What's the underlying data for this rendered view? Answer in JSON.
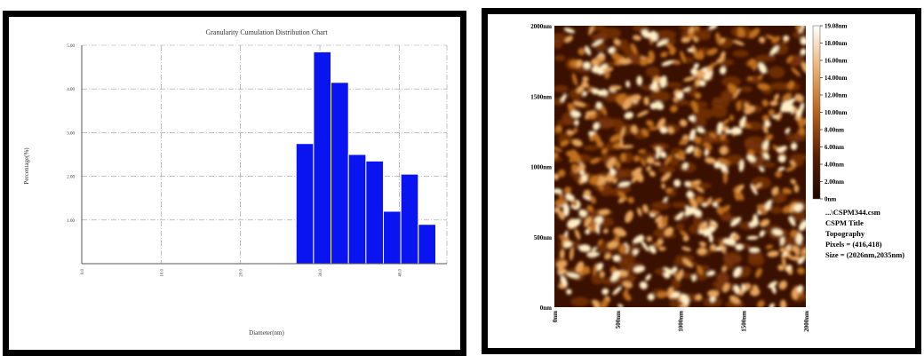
{
  "chart_data": [
    {
      "type": "bar",
      "title": "Granularity Cumulation Distribution Chart",
      "xlabel": "Diameter(nm)",
      "ylabel": "Percentage(%)",
      "x_tick_labels": [
        "0.0",
        "10.0",
        "20.0",
        "30.0",
        "40.0"
      ],
      "y_tick_labels": [
        "1.00",
        "2.00",
        "3.00",
        "4.00",
        "5.00"
      ],
      "xlim": [
        0,
        46
      ],
      "ylim": [
        0,
        5
      ],
      "grid": true,
      "bar_color": "#0a14f0",
      "bars": [
        {
          "x": 27.0,
          "width": 2.2,
          "value": 2.75
        },
        {
          "x": 29.2,
          "width": 2.2,
          "value": 4.85
        },
        {
          "x": 31.4,
          "width": 2.2,
          "value": 4.15
        },
        {
          "x": 33.6,
          "width": 2.2,
          "value": 2.5
        },
        {
          "x": 35.8,
          "width": 2.2,
          "value": 2.35
        },
        {
          "x": 38.0,
          "width": 2.2,
          "value": 1.2
        },
        {
          "x": 40.2,
          "width": 2.2,
          "value": 2.05
        },
        {
          "x": 42.4,
          "width": 2.2,
          "value": 0.9
        }
      ]
    },
    {
      "type": "heatmap",
      "x_tick_labels": [
        "0nm",
        "500nm",
        "1000nm",
        "1500nm",
        "2000nm"
      ],
      "y_tick_labels": [
        "0nm",
        "500nm",
        "1000nm",
        "1500nm",
        "2000nm"
      ],
      "colorbar_labels": [
        "19.08nm",
        "18.00nm",
        "16.00nm",
        "14.00nm",
        "12.00nm",
        "10.00nm",
        "8.00nm",
        "6.00nm",
        "4.00nm",
        "2.00nm",
        "0nm"
      ],
      "colorbar_range": [
        0,
        19.08
      ]
    }
  ],
  "afm_info": {
    "file": "...\\CSPM344.csm",
    "title": "CSPM Title",
    "mode": "Topography",
    "pixels": "Pixels = (416,418)",
    "size": "Size = (2026nm,2035nm)"
  },
  "colors": {
    "bar": "#0a14f0",
    "afm_dark": "#3a1000",
    "afm_mid": "#b8621a",
    "afm_light": "#fff0c8"
  }
}
